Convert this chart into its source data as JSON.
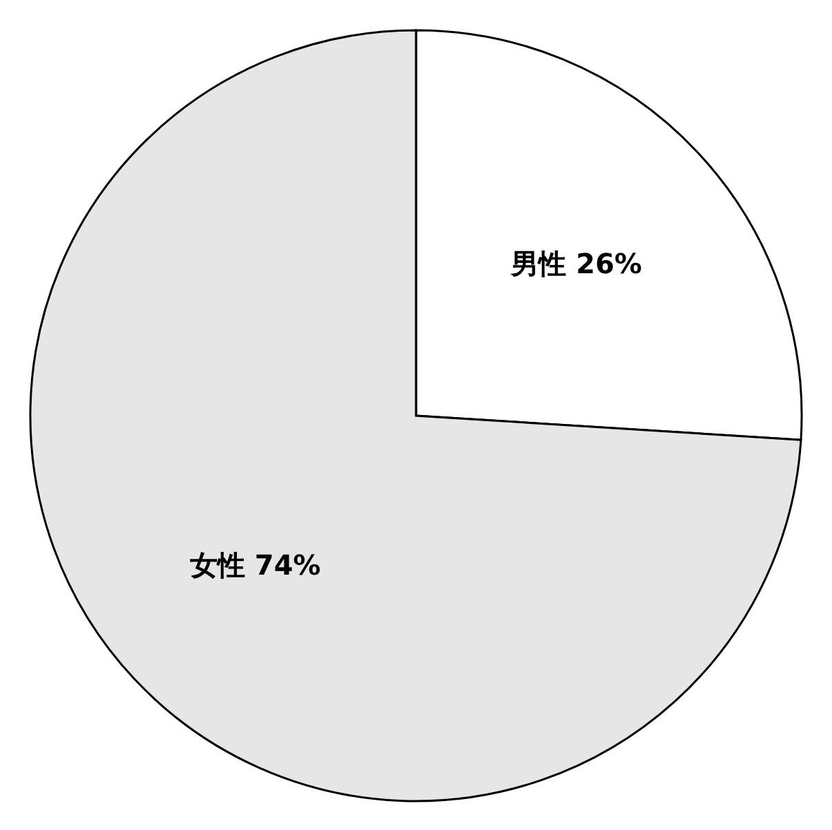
{
  "chart_data": {
    "type": "pie",
    "categories": [
      "男性",
      "女性"
    ],
    "values": [
      26,
      74
    ],
    "value_labels": [
      "26%",
      "74%"
    ],
    "colors": [
      "#ffffff",
      "#e6e6e6"
    ],
    "legend": false
  }
}
